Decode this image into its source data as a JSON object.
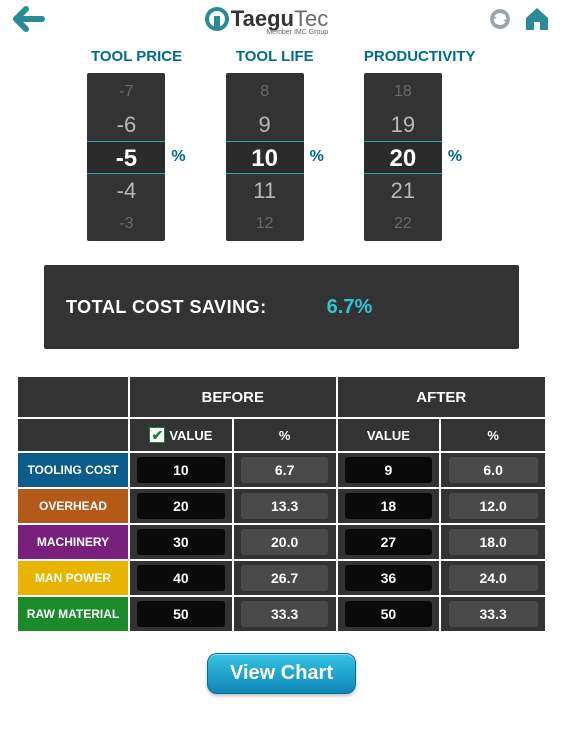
{
  "header": {
    "brand_main": "Taegu",
    "brand_suffix": "Tec",
    "brand_sub": "Member IMC Group"
  },
  "pickers": {
    "unit": "%",
    "tool_price": {
      "label": "TOOL PRICE",
      "values": [
        "-7",
        "-6",
        "-5",
        "-4",
        "-3"
      ],
      "selected": "-5"
    },
    "tool_life": {
      "label": "TOOL LIFE",
      "values": [
        "8",
        "9",
        "10",
        "11",
        "12"
      ],
      "selected": "10"
    },
    "productivity": {
      "label": "PRODUCTIVITY",
      "values": [
        "18",
        "19",
        "20",
        "21",
        "22"
      ],
      "selected": "20"
    }
  },
  "saving": {
    "label": "TOTAL COST SAVING:",
    "value": "6.7%",
    "value_color": "#2ac9d6"
  },
  "table": {
    "group_before": "BEFORE",
    "group_after": "AFTER",
    "col_value": "VALUE",
    "col_percent": "%",
    "check_on": true,
    "rows": [
      {
        "label": "TOOLING COST",
        "color": "#0a5c8a",
        "before_value": "10",
        "before_pct": "6.7",
        "after_value": "9",
        "after_pct": "6.0"
      },
      {
        "label": "OVERHEAD",
        "color": "#b35a18",
        "before_value": "20",
        "before_pct": "13.3",
        "after_value": "18",
        "after_pct": "12.0"
      },
      {
        "label": "MACHINERY",
        "color": "#7a1e7e",
        "before_value": "30",
        "before_pct": "20.0",
        "after_value": "27",
        "after_pct": "18.0"
      },
      {
        "label": "MAN POWER",
        "color": "#e8b400",
        "before_value": "40",
        "before_pct": "26.7",
        "after_value": "36",
        "after_pct": "24.0"
      },
      {
        "label": "RAW MATERIAL",
        "color": "#1a8a2a",
        "before_value": "50",
        "before_pct": "33.3",
        "after_value": "50",
        "after_pct": "33.3"
      }
    ]
  },
  "button": {
    "view_chart": "View Chart"
  },
  "colors": {
    "header_icon": "#2a8a98",
    "picker_bg": "#333333",
    "label_color": "#006b8f"
  }
}
